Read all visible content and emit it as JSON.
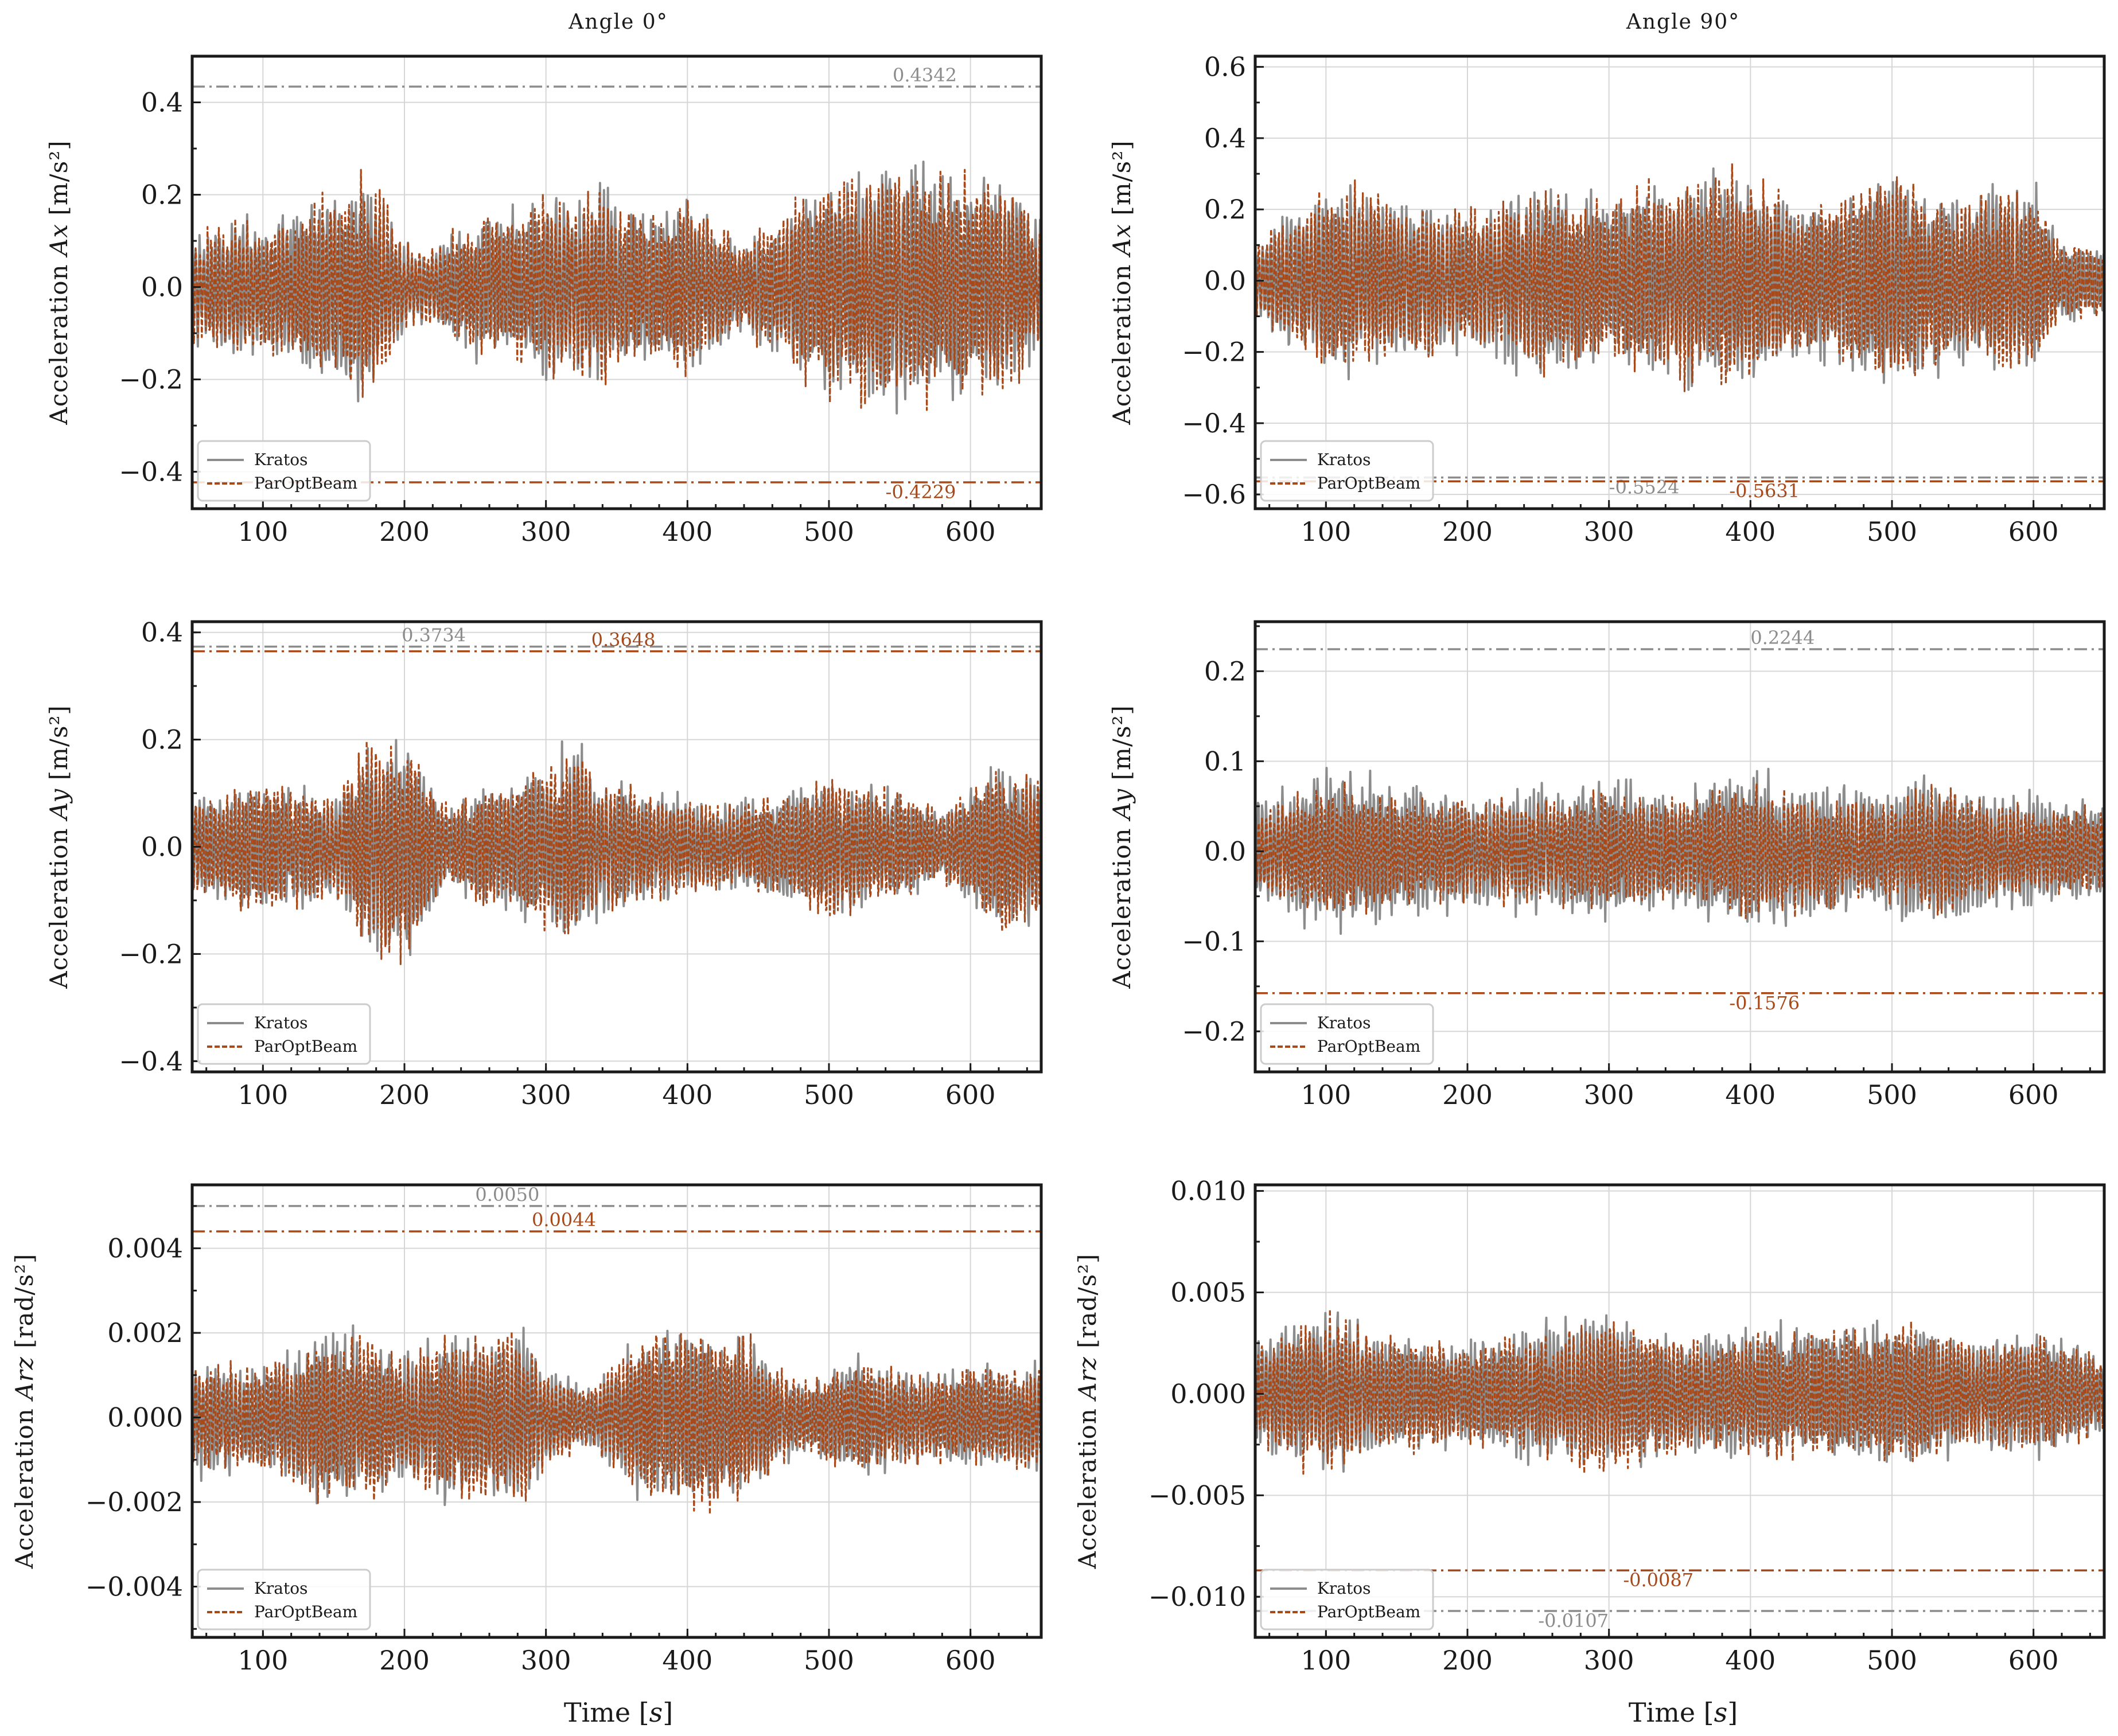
{
  "figure": {
    "xlabel": "Time [s]",
    "xlabel_main": "Time ",
    "xlabel_unit": "s",
    "columns": [
      "Angle 0°",
      "Angle 90°"
    ]
  },
  "colors": {
    "kratos": "#8c8c8c",
    "paroptbeam": "#a64a1c",
    "grid": "#d6d6d6",
    "axes": "#1a1a1a"
  },
  "legend": {
    "kratos": "Kratos",
    "paroptbeam": "ParOptBeam"
  },
  "chart_data": [
    {
      "type": "line",
      "column": "Angle 0°",
      "row": 0,
      "ylabel_prefix": "Acceleration ",
      "ylabel_var": "Ax",
      "ylabel_unit": "[m/s²]",
      "xlim": [
        50,
        650
      ],
      "ylim": [
        -0.48,
        0.5
      ],
      "xticks": [
        "100",
        "200",
        "300",
        "400",
        "500",
        "600"
      ],
      "yticks": [
        "−0.4",
        "−0.2",
        "0.0",
        "0.2",
        "0.4"
      ],
      "ytick_values": [
        -0.4,
        -0.2,
        0.0,
        0.2,
        0.4
      ],
      "series": [
        {
          "name": "Kratos",
          "style": "solid",
          "amp": 0.26,
          "seed": 11
        },
        {
          "name": "ParOptBeam",
          "style": "dashed",
          "amp": 0.26,
          "seed": 12
        }
      ],
      "extremes": [
        {
          "series": "Kratos",
          "value": 0.4342,
          "label": "0.4342",
          "x": 545
        },
        {
          "series": "ParOptBeam",
          "value": -0.4229,
          "label": "-0.4229",
          "x": 540
        }
      ],
      "envelope": [
        [
          50,
          0.45
        ],
        [
          120,
          0.6
        ],
        [
          160,
          0.85
        ],
        [
          180,
          0.95
        ],
        [
          200,
          0.35
        ],
        [
          215,
          0.3
        ],
        [
          250,
          0.55
        ],
        [
          300,
          0.7
        ],
        [
          340,
          0.8
        ],
        [
          370,
          0.6
        ],
        [
          400,
          0.7
        ],
        [
          440,
          0.35
        ],
        [
          460,
          0.55
        ],
        [
          500,
          0.9
        ],
        [
          545,
          1.0
        ],
        [
          580,
          0.85
        ],
        [
          615,
          0.95
        ],
        [
          650,
          0.55
        ]
      ]
    },
    {
      "type": "line",
      "column": "Angle 90°",
      "row": 0,
      "ylabel_prefix": "Acceleration ",
      "ylabel_var": "Ax",
      "ylabel_unit": "[m/s²]",
      "xlim": [
        50,
        650
      ],
      "ylim": [
        -0.64,
        0.63
      ],
      "xticks": [
        "100",
        "200",
        "300",
        "400",
        "500",
        "600"
      ],
      "yticks": [
        "−0.6",
        "−0.4",
        "−0.2",
        "0.0",
        "0.2",
        "0.4",
        "0.6"
      ],
      "ytick_values": [
        -0.6,
        -0.4,
        -0.2,
        0.0,
        0.2,
        0.4,
        0.6
      ],
      "series": [
        {
          "name": "Kratos",
          "style": "solid",
          "amp": 0.31,
          "seed": 21
        },
        {
          "name": "ParOptBeam",
          "style": "dashed",
          "amp": 0.31,
          "seed": 22
        }
      ],
      "extremes": [
        {
          "series": "Kratos",
          "value": -0.5524,
          "label": "-0.5524",
          "x": 300
        },
        {
          "series": "ParOptBeam",
          "value": -0.5631,
          "label": "-0.5631",
          "x": 385
        }
      ],
      "envelope": [
        [
          50,
          0.3
        ],
        [
          80,
          0.7
        ],
        [
          120,
          0.85
        ],
        [
          160,
          0.7
        ],
        [
          200,
          0.6
        ],
        [
          250,
          0.85
        ],
        [
          300,
          0.7
        ],
        [
          360,
          1.0
        ],
        [
          400,
          0.95
        ],
        [
          440,
          0.7
        ],
        [
          500,
          0.95
        ],
        [
          550,
          0.7
        ],
        [
          600,
          0.85
        ],
        [
          620,
          0.35
        ],
        [
          650,
          0.3
        ]
      ]
    },
    {
      "type": "line",
      "column": "Angle 0°",
      "row": 1,
      "ylabel_prefix": "Acceleration ",
      "ylabel_var": "Ay",
      "ylabel_unit": "[m/s²]",
      "xlim": [
        50,
        650
      ],
      "ylim": [
        -0.42,
        0.42
      ],
      "xticks": [
        "100",
        "200",
        "300",
        "400",
        "500",
        "600"
      ],
      "yticks": [
        "−0.4",
        "−0.2",
        "0.0",
        "0.2",
        "0.4"
      ],
      "ytick_values": [
        -0.4,
        -0.2,
        0.0,
        0.2,
        0.4
      ],
      "series": [
        {
          "name": "Kratos",
          "style": "solid",
          "amp": 0.2,
          "seed": 31
        },
        {
          "name": "ParOptBeam",
          "style": "dashed",
          "amp": 0.2,
          "seed": 32
        }
      ],
      "extremes": [
        {
          "series": "Kratos",
          "value": 0.3734,
          "label": "0.3734",
          "x": 198
        },
        {
          "series": "ParOptBeam",
          "value": 0.3648,
          "label": "0.3648",
          "x": 332
        }
      ],
      "envelope": [
        [
          50,
          0.45
        ],
        [
          100,
          0.6
        ],
        [
          150,
          0.5
        ],
        [
          175,
          0.95
        ],
        [
          200,
          1.0
        ],
        [
          230,
          0.35
        ],
        [
          260,
          0.55
        ],
        [
          300,
          0.7
        ],
        [
          320,
          1.0
        ],
        [
          340,
          0.6
        ],
        [
          380,
          0.5
        ],
        [
          420,
          0.4
        ],
        [
          460,
          0.45
        ],
        [
          500,
          0.65
        ],
        [
          540,
          0.55
        ],
        [
          580,
          0.3
        ],
        [
          620,
          0.75
        ],
        [
          650,
          0.65
        ]
      ]
    },
    {
      "type": "line",
      "column": "Angle 90°",
      "row": 1,
      "ylabel_prefix": "Acceleration ",
      "ylabel_var": "Ay",
      "ylabel_unit": "[m/s²]",
      "xlim": [
        50,
        650
      ],
      "ylim": [
        -0.245,
        0.255
      ],
      "xticks": [
        "100",
        "200",
        "300",
        "400",
        "500",
        "600"
      ],
      "yticks": [
        "−0.2",
        "−0.1",
        "0.0",
        "0.1",
        "0.2"
      ],
      "ytick_values": [
        -0.2,
        -0.1,
        0.0,
        0.1,
        0.2
      ],
      "series": [
        {
          "name": "Kratos",
          "style": "solid",
          "amp": 0.09,
          "seed": 41
        },
        {
          "name": "ParOptBeam",
          "style": "dashed",
          "amp": 0.075,
          "seed": 42
        }
      ],
      "extremes": [
        {
          "series": "Kratos",
          "value": 0.2244,
          "label": "0.2244",
          "x": 400
        },
        {
          "series": "ParOptBeam",
          "value": -0.1576,
          "label": "-0.1576",
          "x": 385
        }
      ],
      "envelope": [
        [
          50,
          0.6
        ],
        [
          100,
          1.0
        ],
        [
          150,
          0.8
        ],
        [
          200,
          0.7
        ],
        [
          250,
          0.75
        ],
        [
          300,
          0.85
        ],
        [
          350,
          0.7
        ],
        [
          395,
          1.0
        ],
        [
          450,
          0.8
        ],
        [
          500,
          0.75
        ],
        [
          530,
          0.95
        ],
        [
          580,
          0.7
        ],
        [
          650,
          0.6
        ]
      ]
    },
    {
      "type": "line",
      "column": "Angle 0°",
      "row": 2,
      "ylabel_prefix": "Acceleration ",
      "ylabel_var": "Arz",
      "ylabel_unit": "[rad/s²]",
      "xlim": [
        50,
        650
      ],
      "ylim": [
        -0.0052,
        0.0055
      ],
      "xticks": [
        "100",
        "200",
        "300",
        "400",
        "500",
        "600"
      ],
      "yticks": [
        "−0.004",
        "−0.002",
        "0.000",
        "0.002",
        "0.004"
      ],
      "ytick_values": [
        -0.004,
        -0.002,
        0.0,
        0.002,
        0.004
      ],
      "series": [
        {
          "name": "Kratos",
          "style": "solid",
          "amp": 0.0022,
          "seed": 51
        },
        {
          "name": "ParOptBeam",
          "style": "dashed",
          "amp": 0.0022,
          "seed": 52
        }
      ],
      "extremes": [
        {
          "series": "Kratos",
          "value": 0.005,
          "label": "0.0050",
          "x": 250
        },
        {
          "series": "ParOptBeam",
          "value": 0.0044,
          "label": "0.0044",
          "x": 290
        }
      ],
      "envelope": [
        [
          50,
          0.6
        ],
        [
          100,
          0.55
        ],
        [
          140,
          0.85
        ],
        [
          170,
          0.9
        ],
        [
          200,
          0.65
        ],
        [
          230,
          0.9
        ],
        [
          260,
          0.9
        ],
        [
          280,
          1.0
        ],
        [
          300,
          0.55
        ],
        [
          330,
          0.3
        ],
        [
          370,
          0.9
        ],
        [
          410,
          0.95
        ],
        [
          440,
          0.85
        ],
        [
          480,
          0.35
        ],
        [
          520,
          0.6
        ],
        [
          560,
          0.45
        ],
        [
          600,
          0.5
        ],
        [
          650,
          0.55
        ]
      ]
    },
    {
      "type": "line",
      "column": "Angle 90°",
      "row": 2,
      "ylabel_prefix": "Acceleration ",
      "ylabel_var": "Arz",
      "ylabel_unit": "[rad/s²]",
      "xlim": [
        50,
        650
      ],
      "ylim": [
        -0.012,
        0.0103
      ],
      "xticks": [
        "100",
        "200",
        "300",
        "400",
        "500",
        "600"
      ],
      "yticks": [
        "−0.010",
        "−0.005",
        "0.000",
        "0.005",
        "0.010"
      ],
      "ytick_values": [
        -0.01,
        -0.005,
        0.0,
        0.005,
        0.01
      ],
      "series": [
        {
          "name": "Kratos",
          "style": "solid",
          "amp": 0.0042,
          "seed": 61
        },
        {
          "name": "ParOptBeam",
          "style": "dashed",
          "amp": 0.004,
          "seed": 62
        }
      ],
      "extremes": [
        {
          "series": "Kratos",
          "value": -0.0107,
          "label": "-0.0107",
          "x": 250
        },
        {
          "series": "ParOptBeam",
          "value": -0.0087,
          "label": "-0.0087",
          "x": 310
        }
      ],
      "envelope": [
        [
          50,
          0.6
        ],
        [
          80,
          0.9
        ],
        [
          110,
          0.95
        ],
        [
          140,
          0.7
        ],
        [
          200,
          0.6
        ],
        [
          250,
          0.75
        ],
        [
          295,
          1.0
        ],
        [
          330,
          0.75
        ],
        [
          380,
          0.7
        ],
        [
          420,
          0.8
        ],
        [
          460,
          0.75
        ],
        [
          520,
          0.85
        ],
        [
          560,
          0.65
        ],
        [
          600,
          0.7
        ],
        [
          650,
          0.45
        ]
      ]
    }
  ]
}
